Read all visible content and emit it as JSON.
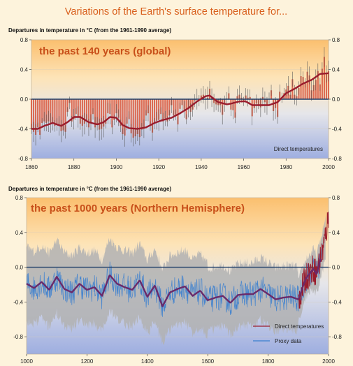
{
  "title": "Variations of the Earth's surface temperature for...",
  "colors": {
    "title": "#d9601e",
    "panel_title": "#c8501a",
    "bar": "#d8553b",
    "smooth": "#9a1c2c",
    "proxy": "#3a7fd0",
    "uncertainty": "#b2b2b2",
    "zero_line": "#1f3e68",
    "background": "#fdf3dc",
    "panel_top": "#fbbf6e",
    "panel_bottom": "#9eaee0"
  },
  "chart_data": [
    {
      "type": "bar",
      "title": "the past 140 years (global)",
      "ylabel": "Departures in temperature in °C (from the 1961-1990 average)",
      "ylim": [
        -0.8,
        0.8
      ],
      "yticks": [
        "0.8",
        "0.4",
        "0.0",
        "-0.4",
        "-0.8"
      ],
      "xlim": [
        1860,
        2000
      ],
      "xticks": [
        "1860",
        "1880",
        "1900",
        "1920",
        "1940",
        "1960",
        "1980",
        "2000"
      ],
      "legend": [
        {
          "name": "Direct temperatures"
        }
      ],
      "series": [
        {
          "name": "Direct temperatures",
          "type": "bar",
          "x": [
            1860,
            1861,
            1862,
            1863,
            1864,
            1865,
            1866,
            1867,
            1868,
            1869,
            1870,
            1871,
            1872,
            1873,
            1874,
            1875,
            1876,
            1877,
            1878,
            1879,
            1880,
            1881,
            1882,
            1883,
            1884,
            1885,
            1886,
            1887,
            1888,
            1889,
            1890,
            1891,
            1892,
            1893,
            1894,
            1895,
            1896,
            1897,
            1898,
            1899,
            1900,
            1901,
            1902,
            1903,
            1904,
            1905,
            1906,
            1907,
            1908,
            1909,
            1910,
            1911,
            1912,
            1913,
            1914,
            1915,
            1916,
            1917,
            1918,
            1919,
            1920,
            1921,
            1922,
            1923,
            1924,
            1925,
            1926,
            1927,
            1928,
            1929,
            1930,
            1931,
            1932,
            1933,
            1934,
            1935,
            1936,
            1937,
            1938,
            1939,
            1940,
            1941,
            1942,
            1943,
            1944,
            1945,
            1946,
            1947,
            1948,
            1949,
            1950,
            1951,
            1952,
            1953,
            1954,
            1955,
            1956,
            1957,
            1958,
            1959,
            1960,
            1961,
            1962,
            1963,
            1964,
            1965,
            1966,
            1967,
            1968,
            1969,
            1970,
            1971,
            1972,
            1973,
            1974,
            1975,
            1976,
            1977,
            1978,
            1979,
            1980,
            1981,
            1982,
            1983,
            1984,
            1985,
            1986,
            1987,
            1988,
            1989,
            1990,
            1991,
            1992,
            1993,
            1994,
            1995,
            1996,
            1997,
            1998,
            1999,
            2000
          ],
          "values": [
            -0.4,
            -0.44,
            -0.48,
            -0.38,
            -0.48,
            -0.32,
            -0.3,
            -0.32,
            -0.3,
            -0.32,
            -0.33,
            -0.36,
            -0.34,
            -0.36,
            -0.43,
            -0.42,
            -0.44,
            -0.17,
            -0.05,
            -0.3,
            -0.27,
            -0.2,
            -0.24,
            -0.33,
            -0.36,
            -0.33,
            -0.29,
            -0.38,
            -0.31,
            -0.2,
            -0.38,
            -0.33,
            -0.41,
            -0.4,
            -0.37,
            -0.33,
            -0.19,
            -0.2,
            -0.38,
            -0.28,
            -0.19,
            -0.25,
            -0.36,
            -0.47,
            -0.49,
            -0.33,
            -0.27,
            -0.46,
            -0.52,
            -0.5,
            -0.47,
            -0.51,
            -0.41,
            -0.4,
            -0.22,
            -0.19,
            -0.36,
            -0.45,
            -0.33,
            -0.29,
            -0.28,
            -0.2,
            -0.3,
            -0.26,
            -0.3,
            -0.22,
            -0.08,
            -0.22,
            -0.21,
            -0.34,
            -0.13,
            -0.08,
            -0.14,
            -0.27,
            -0.12,
            -0.17,
            -0.14,
            -0.02,
            0.0,
            -0.02,
            0.05,
            0.06,
            0.0,
            0.02,
            0.14,
            0.02,
            -0.05,
            -0.07,
            -0.08,
            -0.08,
            -0.21,
            -0.06,
            0.01,
            0.08,
            -0.14,
            -0.15,
            -0.25,
            0.04,
            0.06,
            0.02,
            -0.03,
            0.05,
            0.02,
            0.03,
            -0.23,
            -0.12,
            -0.06,
            -0.07,
            -0.11,
            0.03,
            -0.04,
            -0.09,
            0.0,
            0.12,
            -0.16,
            -0.12,
            -0.24,
            0.1,
            0.02,
            0.08,
            0.13,
            0.18,
            0.06,
            0.27,
            0.06,
            0.04,
            0.15,
            0.31,
            0.3,
            0.22,
            0.37,
            0.32,
            0.12,
            0.19,
            0.26,
            0.38,
            0.2,
            0.41,
            0.57,
            0.34,
            0.38
          ]
        },
        {
          "name": "Direct temperatures (smoothed)",
          "type": "line",
          "x": [
            1860,
            1863,
            1866,
            1870,
            1874,
            1877,
            1880,
            1883,
            1887,
            1891,
            1894,
            1897,
            1900,
            1903,
            1906,
            1910,
            1914,
            1918,
            1922,
            1926,
            1930,
            1934,
            1938,
            1942,
            1944,
            1948,
            1952,
            1954,
            1958,
            1961,
            1964,
            1968,
            1972,
            1976,
            1980,
            1984,
            1988,
            1992,
            1996,
            2000
          ],
          "values": [
            -0.4,
            -0.4,
            -0.36,
            -0.32,
            -0.36,
            -0.31,
            -0.24,
            -0.24,
            -0.31,
            -0.34,
            -0.31,
            -0.24,
            -0.25,
            -0.35,
            -0.39,
            -0.4,
            -0.38,
            -0.32,
            -0.28,
            -0.25,
            -0.19,
            -0.12,
            -0.03,
            0.04,
            0.05,
            -0.04,
            -0.07,
            -0.06,
            -0.03,
            -0.03,
            -0.08,
            -0.08,
            -0.08,
            -0.04,
            0.08,
            0.14,
            0.21,
            0.26,
            0.34,
            0.35
          ]
        }
      ]
    },
    {
      "type": "line",
      "title": "the past 1000 years (Northern Hemisphere)",
      "ylabel": "Departures in temperature in °C (from the 1961-1990 average)",
      "ylim": [
        -1.0,
        0.8
      ],
      "yticks": [
        "0.8",
        "0.4",
        "0.0",
        "-0.4",
        "-0.8"
      ],
      "xlim": [
        1000,
        2000
      ],
      "xticks": [
        "1000",
        "1200",
        "1400",
        "1600",
        "1800",
        "2000"
      ],
      "legend": [
        {
          "name": "Direct temperatures"
        },
        {
          "name": "Proxy data"
        }
      ],
      "series": [
        {
          "name": "Direct temperatures",
          "x": [
            1000,
            1025,
            1050,
            1075,
            1100,
            1125,
            1150,
            1175,
            1200,
            1225,
            1250,
            1275,
            1300,
            1325,
            1350,
            1375,
            1400,
            1425,
            1450,
            1475,
            1500,
            1525,
            1550,
            1575,
            1600,
            1625,
            1650,
            1675,
            1700,
            1725,
            1750,
            1775,
            1800,
            1825,
            1850,
            1875,
            1900,
            1925,
            1950,
            1960,
            1975,
            1990,
            2000
          ],
          "values": [
            -0.2,
            -0.23,
            -0.18,
            -0.25,
            -0.12,
            -0.24,
            -0.28,
            -0.2,
            -0.25,
            -0.24,
            -0.32,
            -0.1,
            -0.18,
            -0.22,
            -0.27,
            -0.16,
            -0.33,
            -0.22,
            -0.44,
            -0.3,
            -0.24,
            -0.23,
            -0.32,
            -0.28,
            -0.37,
            -0.36,
            -0.32,
            -0.4,
            -0.33,
            -0.3,
            -0.32,
            -0.24,
            -0.3,
            -0.38,
            -0.34,
            -0.33,
            -0.38,
            -0.12,
            -0.01,
            -0.07,
            0.12,
            0.35,
            0.6
          ]
        },
        {
          "name": "Proxy data",
          "x": [
            1000,
            1025,
            1050,
            1075,
            1100,
            1125,
            1150,
            1175,
            1200,
            1225,
            1250,
            1275,
            1300,
            1325,
            1350,
            1375,
            1400,
            1425,
            1450,
            1475,
            1500,
            1525,
            1550,
            1575,
            1600,
            1625,
            1650,
            1675,
            1700,
            1725,
            1750,
            1775,
            1800,
            1825,
            1850,
            1875,
            1900,
            1925,
            1950,
            1960,
            1975,
            1990,
            2000
          ],
          "values": [
            -0.19,
            -0.24,
            -0.17,
            -0.26,
            -0.11,
            -0.25,
            -0.29,
            -0.19,
            -0.26,
            -0.23,
            -0.33,
            -0.09,
            -0.19,
            -0.23,
            -0.26,
            -0.15,
            -0.34,
            -0.21,
            -0.45,
            -0.29,
            -0.25,
            -0.22,
            -0.33,
            -0.27,
            -0.38,
            -0.35,
            -0.33,
            -0.41,
            -0.32,
            -0.31,
            -0.31,
            -0.25,
            -0.31,
            -0.37,
            -0.35,
            -0.34,
            -0.37,
            -0.13,
            -0.02,
            -0.08,
            0.11,
            0.34,
            0.59
          ]
        }
      ]
    }
  ]
}
